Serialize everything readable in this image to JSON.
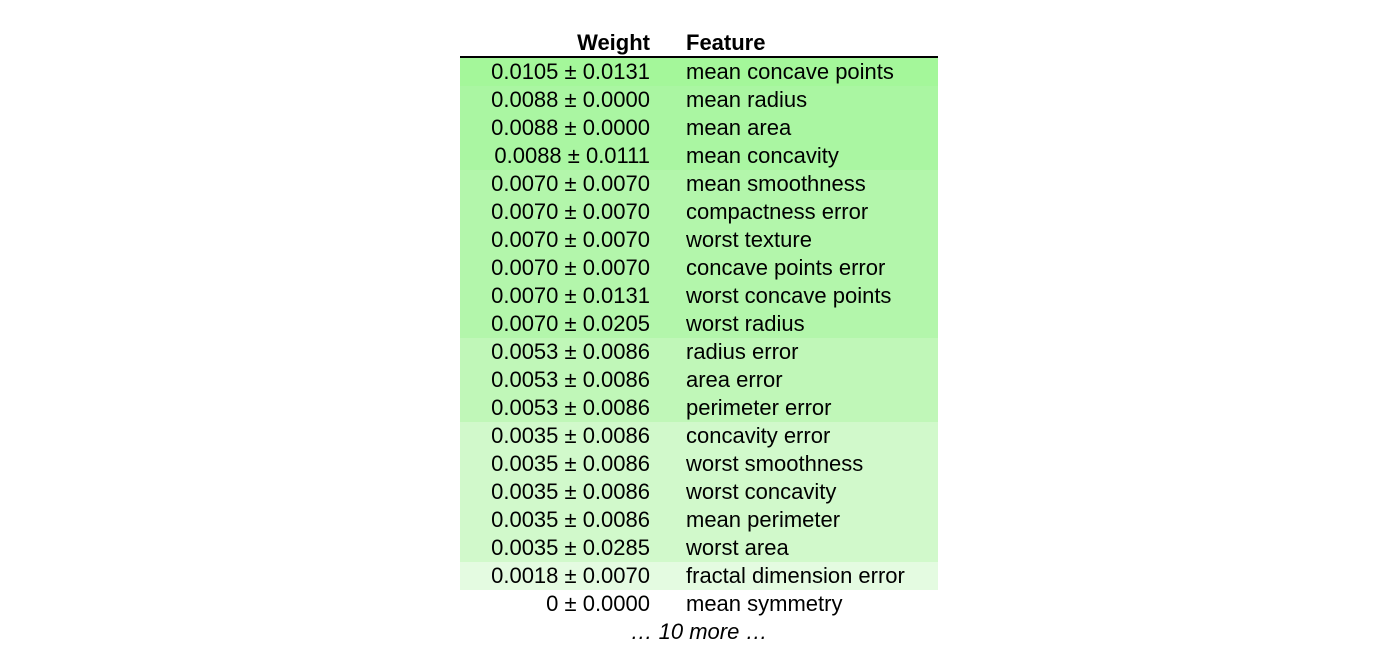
{
  "header": {
    "weight_label": "Weight",
    "feature_label": "Feature"
  },
  "chart_data": {
    "type": "table",
    "columns": [
      "Weight",
      "Feature"
    ],
    "rows": [
      {
        "weight": "0.0105 ± 0.0131",
        "feature": "mean concave points",
        "color": "#a4f79a"
      },
      {
        "weight": "0.0088 ± 0.0000",
        "feature": "mean radius",
        "color": "#aaf6a2"
      },
      {
        "weight": "0.0088 ± 0.0000",
        "feature": "mean area",
        "color": "#aaf6a2"
      },
      {
        "weight": "0.0088 ± 0.0111",
        "feature": "mean concavity",
        "color": "#aaf6a2"
      },
      {
        "weight": "0.0070 ± 0.0070",
        "feature": "mean smoothness",
        "color": "#b3f6ab"
      },
      {
        "weight": "0.0070 ± 0.0070",
        "feature": "compactness error",
        "color": "#b3f6ab"
      },
      {
        "weight": "0.0070 ± 0.0070",
        "feature": "worst texture",
        "color": "#b3f6ab"
      },
      {
        "weight": "0.0070 ± 0.0070",
        "feature": "concave points error",
        "color": "#b3f6ab"
      },
      {
        "weight": "0.0070 ± 0.0131",
        "feature": "worst concave points",
        "color": "#b3f6ab"
      },
      {
        "weight": "0.0070 ± 0.0205",
        "feature": "worst radius",
        "color": "#b3f6ab"
      },
      {
        "weight": "0.0053 ± 0.0086",
        "feature": "radius error",
        "color": "#c0f7b8"
      },
      {
        "weight": "0.0053 ± 0.0086",
        "feature": "area error",
        "color": "#c0f7b8"
      },
      {
        "weight": "0.0053 ± 0.0086",
        "feature": "perimeter error",
        "color": "#c0f7b8"
      },
      {
        "weight": "0.0035 ± 0.0086",
        "feature": "concavity error",
        "color": "#d1f9cb"
      },
      {
        "weight": "0.0035 ± 0.0086",
        "feature": "worst smoothness",
        "color": "#d1f9cb"
      },
      {
        "weight": "0.0035 ± 0.0086",
        "feature": "worst concavity",
        "color": "#d1f9cb"
      },
      {
        "weight": "0.0035 ± 0.0086",
        "feature": "mean perimeter",
        "color": "#d1f9cb"
      },
      {
        "weight": "0.0035 ± 0.0285",
        "feature": "worst area",
        "color": "#d1f9cb"
      },
      {
        "weight": "0.0018 ± 0.0070",
        "feature": "fractal dimension error",
        "color": "#e4fbe1"
      },
      {
        "weight": "0 ± 0.0000",
        "feature": "mean symmetry",
        "color": "#ffffff"
      }
    ],
    "more_label": "… 10 more …"
  }
}
